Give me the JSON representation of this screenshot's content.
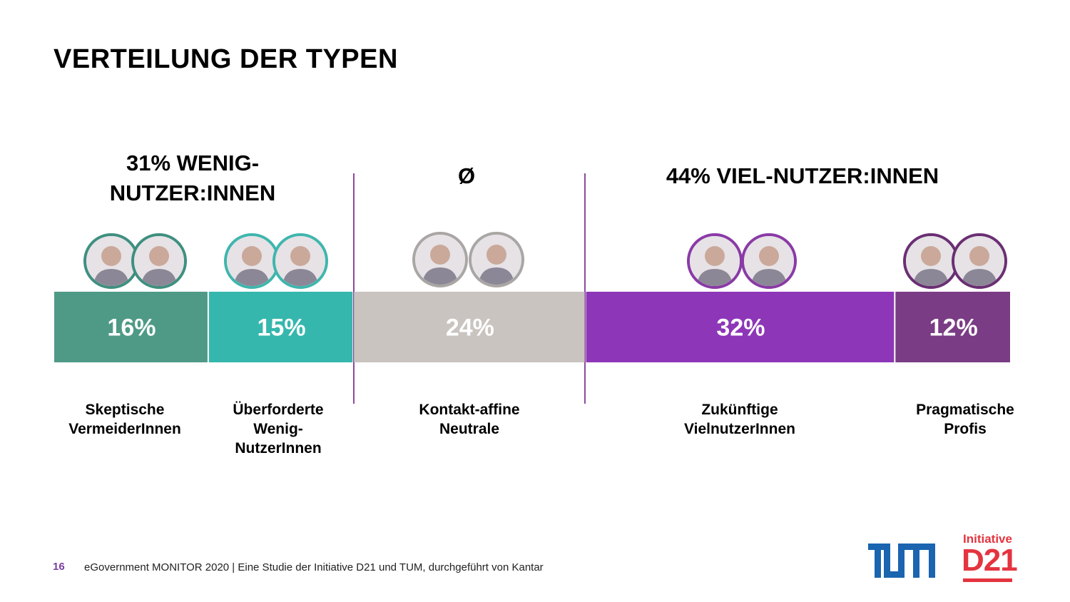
{
  "title": "VERTEILUNG DER TYPEN",
  "groups": [
    {
      "label": "31% WENIG-\nNUTZER:INNEN"
    },
    {
      "label": "Ø"
    },
    {
      "label": "44% VIEL-NUTZER:INNEN"
    }
  ],
  "chart_data": {
    "type": "bar",
    "orientation": "horizontal-stacked",
    "categories": [
      "Skeptische VermeiderInnen",
      "Überforderte Wenig-NutzerInnen",
      "Kontakt-affine Neutrale",
      "Zukünftige VielnutzerInnen",
      "Pragmatische Profis"
    ],
    "values": [
      16,
      15,
      24,
      32,
      12
    ],
    "data_labels": [
      "16%",
      "15%",
      "24%",
      "32%",
      "12%"
    ],
    "colors": [
      "#4e9a86",
      "#36b7ad",
      "#c9c4c0",
      "#8d36b8",
      "#7a3c84"
    ],
    "title": "VERTEILUNG DER TYPEN"
  },
  "segments": [
    {
      "label": "Skeptische\nVermeiderInnen",
      "value_label": "16%"
    },
    {
      "label": "Überforderte\nWenig-\nNutzerInnen",
      "value_label": "15%"
    },
    {
      "label": "Kontakt-affine\nNeutrale",
      "value_label": "24%"
    },
    {
      "label": "Zukünftige\nVielnutzerInnen",
      "value_label": "32%"
    },
    {
      "label": "Pragmatische\nProfis",
      "value_label": "12%"
    }
  ],
  "avatar_ring_colors": [
    "#3f8f80",
    "#3fb6ad",
    "#a9a6a4",
    "#8a3aa6",
    "#6a2f73"
  ],
  "footer": {
    "page_number": "16",
    "text": "eGovernment MONITOR 2020 | Eine Studie der Initiative D21 und TUM, durchgeführt von Kantar"
  },
  "logos": {
    "tum": "TUM",
    "d21_top": "Initiative",
    "d21_main": "D21"
  }
}
